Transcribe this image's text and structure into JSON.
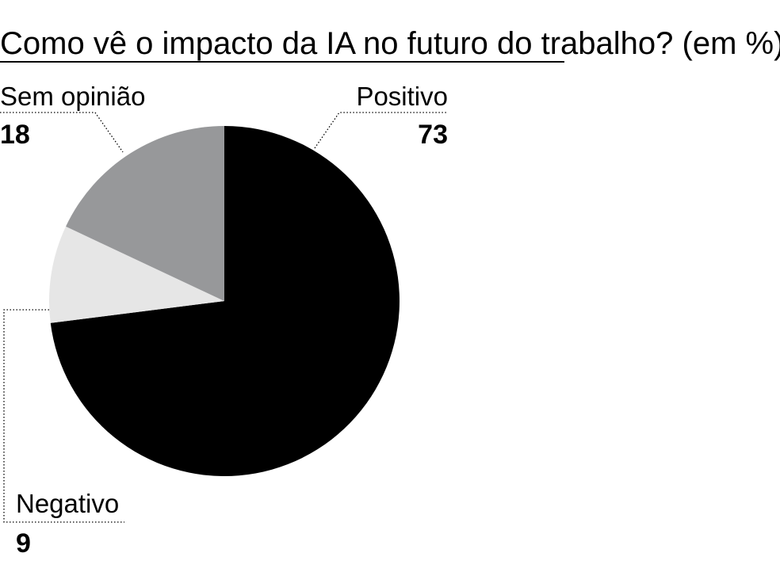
{
  "chart_data": {
    "type": "pie",
    "title": "Como vê o impacto da IA no futuro do trabalho? (em %)",
    "unit": "%",
    "slices": [
      {
        "label": "Positivo",
        "value": 73,
        "color": "#000000"
      },
      {
        "label": "Negativo",
        "value": 9,
        "color": "#e6e6e6"
      },
      {
        "label": "Sem opinião",
        "value": 18,
        "color": "#97989a"
      }
    ],
    "start_angle": "12 o'clock, clockwise",
    "legend": "none (direct labels with dotted leader lines)"
  }
}
